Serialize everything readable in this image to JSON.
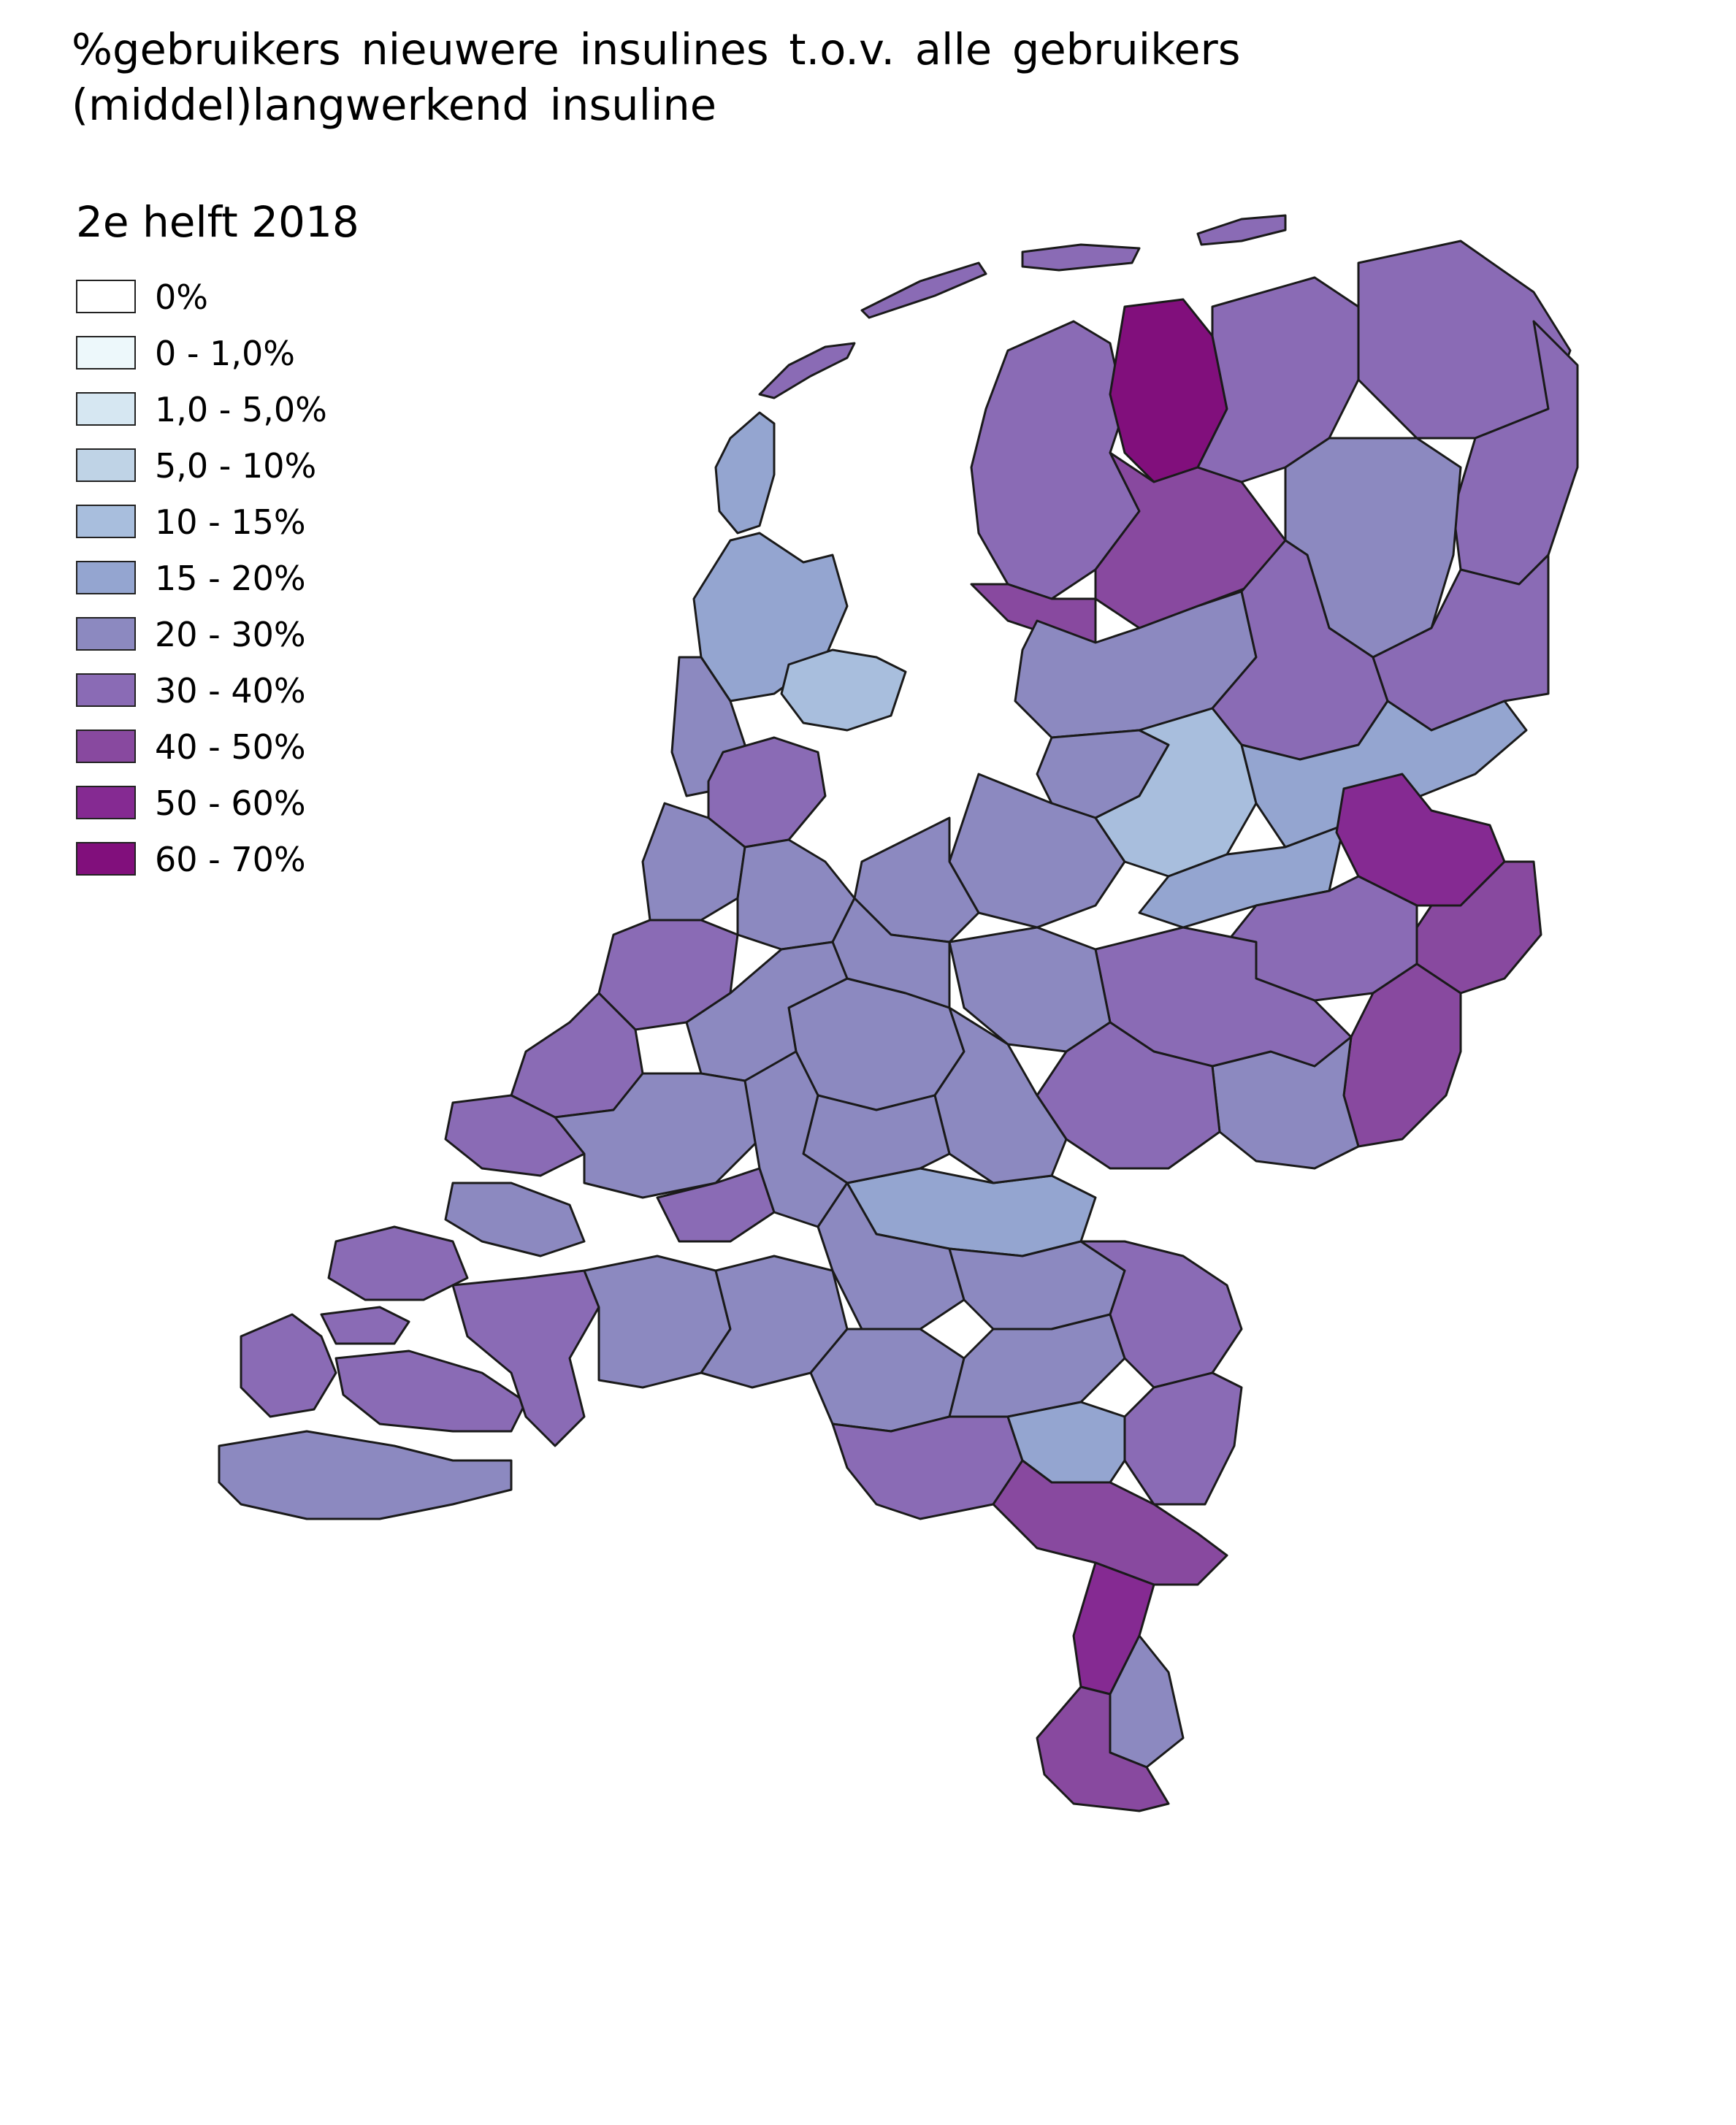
{
  "title": "%gebruikers nieuwere insulines t.o.v. alle gebruikers (middel)langwerkend insuline",
  "subtitle": "2e helft 2018",
  "legend": [
    {
      "label": "0%",
      "color": "#ffffff"
    },
    {
      "label": "0 - 1,0%",
      "color": "#edf8fb"
    },
    {
      "label": "1,0 - 5,0%",
      "color": "#d6e7f2"
    },
    {
      "label": "5,0 - 10%",
      "color": "#bfd3e6"
    },
    {
      "label": "10 - 15%",
      "color": "#a8bedd"
    },
    {
      "label": "15 - 20%",
      "color": "#94a5d0"
    },
    {
      "label": "20 - 30%",
      "color": "#8c89c0"
    },
    {
      "label": "30 - 40%",
      "color": "#8a6bb5"
    },
    {
      "label": "40 - 50%",
      "color": "#88499f"
    },
    {
      "label": "50 - 60%",
      "color": "#852a92"
    },
    {
      "label": "60 - 70%",
      "color": "#810f7c"
    }
  ]
}
